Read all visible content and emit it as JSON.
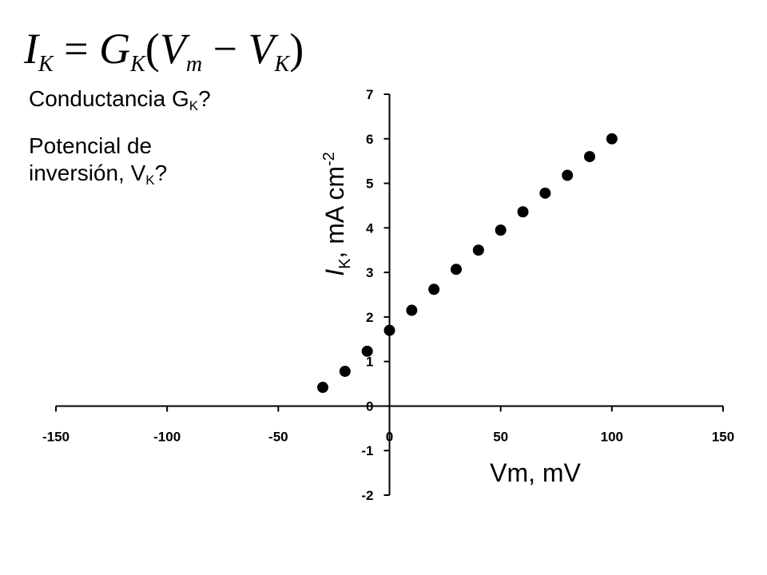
{
  "equation": {
    "i": "I",
    "i_sub": "K",
    "equals": " = ",
    "g": "G",
    "g_sub": "K",
    "open": "(",
    "v": "V",
    "v_sub": "m",
    "minus": " − ",
    "v2": "V",
    "v2_sub": "K",
    "close": ")"
  },
  "questions": {
    "conductance_text": "Conductancia G",
    "conductance_sub": "K",
    "conductance_mark": "?",
    "potential_line1": "Potencial de",
    "potential_line2": "inversión, V",
    "potential_sub": "K",
    "potential_mark": "?"
  },
  "colors": {
    "axis": "#000000",
    "marker": "#000000",
    "background": "#ffffff"
  },
  "chart_data": {
    "type": "scatter",
    "xlabel": "Vm, mV",
    "ylabel_prefix": "I",
    "ylabel_sub": "K",
    "ylabel_rest": ", mA cm",
    "ylabel_sup": "-2",
    "xlim": [
      -150,
      150
    ],
    "ylim": [
      -2,
      7
    ],
    "xticks": [
      -150,
      -100,
      -50,
      0,
      50,
      100,
      150
    ],
    "yticks": [
      -2,
      -1,
      0,
      1,
      2,
      3,
      4,
      5,
      6,
      7
    ],
    "grid": false,
    "legend": "none",
    "points": [
      {
        "x": -30,
        "y": 0.42
      },
      {
        "x": -20,
        "y": 0.78
      },
      {
        "x": -10,
        "y": 1.23
      },
      {
        "x": 0,
        "y": 1.7
      },
      {
        "x": 10,
        "y": 2.15
      },
      {
        "x": 20,
        "y": 2.62
      },
      {
        "x": 30,
        "y": 3.07
      },
      {
        "x": 40,
        "y": 3.5
      },
      {
        "x": 50,
        "y": 3.95
      },
      {
        "x": 60,
        "y": 4.36
      },
      {
        "x": 70,
        "y": 4.78
      },
      {
        "x": 80,
        "y": 5.18
      },
      {
        "x": 90,
        "y": 5.6
      },
      {
        "x": 100,
        "y": 6.0
      }
    ]
  }
}
